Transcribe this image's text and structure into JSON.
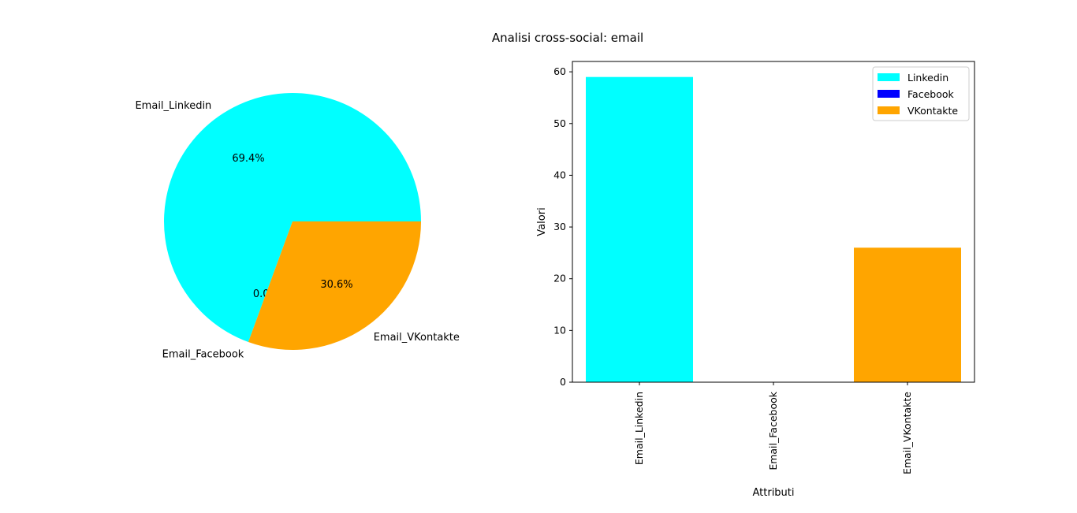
{
  "figure": {
    "title": "Analisi cross-social: email"
  },
  "chart_data": [
    {
      "type": "pie",
      "categories": [
        "Email_Linkedin",
        "Email_Facebook",
        "Email_VKontakte"
      ],
      "values": [
        59,
        0,
        26
      ],
      "percent_labels": [
        "69.4%",
        "0.0%",
        "30.6%"
      ],
      "colors": [
        "#00ffff",
        "#0000ff",
        "#ffa500"
      ],
      "start_angle_deg": 0,
      "direction": "counterclockwise"
    },
    {
      "type": "bar",
      "categories": [
        "Email_Linkedin",
        "Email_Facebook",
        "Email_VKontakte"
      ],
      "values": [
        59,
        0,
        26
      ],
      "colors": [
        "#00ffff",
        "#0000ff",
        "#ffa500"
      ],
      "xlabel": "Attributi",
      "ylabel": "Valori",
      "ylim": [
        0,
        62
      ],
      "yticks": [
        0,
        10,
        20,
        30,
        40,
        50,
        60
      ],
      "xtick_rotation": "vertical",
      "grid": false,
      "legend": {
        "placement": "upper-right",
        "entries": [
          {
            "label": "Linkedin",
            "color": "#00ffff"
          },
          {
            "label": "Facebook",
            "color": "#0000ff"
          },
          {
            "label": "VKontakte",
            "color": "#ffa500"
          }
        ]
      }
    }
  ]
}
